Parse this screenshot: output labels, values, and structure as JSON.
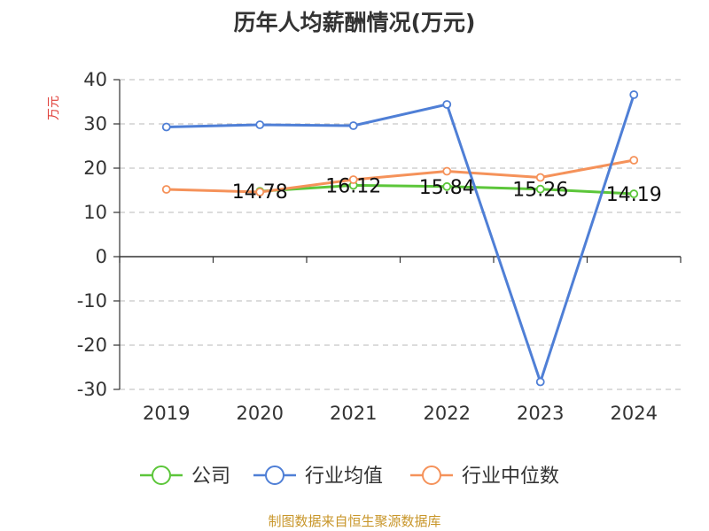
{
  "chart_data": {
    "type": "line",
    "title": "历年人均薪酬情况(万元)",
    "ylabel": "万元",
    "xlabel": "",
    "categories": [
      "2019",
      "2020",
      "2021",
      "2022",
      "2023",
      "2024"
    ],
    "ylim": [
      -30,
      40
    ],
    "yticks": [
      40,
      30,
      20,
      10,
      0,
      -10,
      -20,
      -30
    ],
    "grid": true,
    "legend_position": "bottom",
    "series": [
      {
        "name": "公司",
        "color": "#5cc63a",
        "values": [
          null,
          14.78,
          16.12,
          15.84,
          15.26,
          14.19
        ],
        "labels": [
          "",
          "14.78",
          "16.12",
          "15.84",
          "15.26",
          "14.19"
        ]
      },
      {
        "name": "行业均值",
        "color": "#4f7fd6",
        "values": [
          29.3,
          29.8,
          29.6,
          34.4,
          -28.3,
          36.6
        ]
      },
      {
        "name": "行业中位数",
        "color": "#f5925a",
        "values": [
          15.2,
          14.6,
          17.4,
          19.3,
          17.9,
          21.8
        ]
      }
    ]
  },
  "source": "制图数据来自恒生聚源数据库"
}
